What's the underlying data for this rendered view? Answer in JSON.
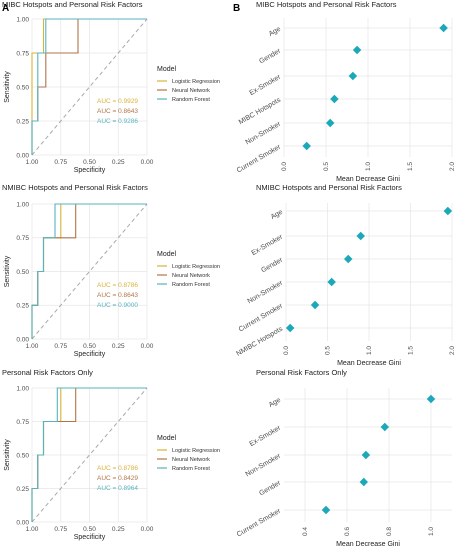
{
  "panel_letters": {
    "a": "A",
    "b": "B"
  },
  "colors": {
    "logistic": "#d8b23a",
    "neural": "#b07548",
    "forest": "#56b4be",
    "diamond": "#1ba8b8",
    "grid": "#e6e6e6",
    "diagonal": "#a9a9a9",
    "axis_text": "#4d4d4d"
  },
  "chart_data": [
    {
      "id": "roc1",
      "type": "line",
      "title": "MIBC Hotspots and Personal Risk Factors",
      "xlabel": "Specificity",
      "ylabel": "Sensitivity",
      "xlim": [
        1.0,
        0.0
      ],
      "ylim": [
        0.0,
        1.0
      ],
      "x_ticks": [
        "1.00",
        "0.75",
        "0.50",
        "0.25",
        "0.00"
      ],
      "y_ticks": [
        "0.00",
        "0.25",
        "0.50",
        "0.75",
        "1.00"
      ],
      "grid": true,
      "legend": {
        "title": "Model",
        "position": "right",
        "entries": [
          "Logistic Regression",
          "Neural Network",
          "Random Forest"
        ]
      },
      "annotations": [
        "AUC = 0.9929",
        "AUC = 0.8643",
        "AUC = 0.9286"
      ],
      "series": [
        {
          "name": "Logistic Regression",
          "x": [
            1.0,
            1.0,
            0.9,
            0.9,
            0.8,
            0.8,
            0.7,
            0.7,
            0.0
          ],
          "y": [
            0.0,
            0.75,
            0.75,
            1.0,
            1.0,
            1.0,
            1.0,
            1.0,
            1.0
          ]
        },
        {
          "name": "Neural Network",
          "x": [
            1.0,
            1.0,
            0.95,
            0.95,
            0.88,
            0.88,
            0.75,
            0.75,
            0.6,
            0.6,
            0.0
          ],
          "y": [
            0.0,
            0.25,
            0.25,
            0.5,
            0.5,
            0.75,
            0.75,
            0.75,
            0.75,
            1.0,
            1.0
          ]
        },
        {
          "name": "Random Forest",
          "x": [
            1.0,
            1.0,
            0.95,
            0.95,
            0.88,
            0.88,
            0.8,
            0.8,
            0.0
          ],
          "y": [
            0.0,
            0.25,
            0.25,
            0.75,
            0.75,
            1.0,
            1.0,
            1.0,
            1.0
          ]
        }
      ]
    },
    {
      "id": "roc2",
      "type": "line",
      "title": "NMIBC Hotspots and Personal Risk Factors",
      "xlabel": "Specificity",
      "ylabel": "Sensitivity",
      "xlim": [
        1.0,
        0.0
      ],
      "ylim": [
        0.0,
        1.0
      ],
      "x_ticks": [
        "1.00",
        "0.75",
        "0.50",
        "0.25",
        "0.00"
      ],
      "y_ticks": [
        "0.00",
        "0.25",
        "0.50",
        "0.75",
        "1.00"
      ],
      "grid": true,
      "legend": {
        "title": "Model",
        "position": "right",
        "entries": [
          "Logistic Regression",
          "Neural Network",
          "Random Forest"
        ]
      },
      "annotations": [
        "AUC = 0.8786",
        "AUC = 0.8643",
        "AUC = 0.9000"
      ],
      "series": [
        {
          "name": "Logistic Regression",
          "x": [
            1.0,
            1.0,
            0.95,
            0.95,
            0.9,
            0.9,
            0.75,
            0.75,
            0.0
          ],
          "y": [
            0.0,
            0.25,
            0.25,
            0.5,
            0.5,
            0.75,
            0.75,
            1.0,
            1.0
          ]
        },
        {
          "name": "Neural Network",
          "x": [
            1.0,
            1.0,
            0.95,
            0.95,
            0.9,
            0.9,
            0.62,
            0.62,
            0.0
          ],
          "y": [
            0.0,
            0.25,
            0.25,
            0.5,
            0.5,
            0.75,
            0.75,
            1.0,
            1.0
          ]
        },
        {
          "name": "Random Forest",
          "x": [
            1.0,
            1.0,
            0.95,
            0.95,
            0.9,
            0.9,
            0.8,
            0.8,
            0.0
          ],
          "y": [
            0.0,
            0.25,
            0.25,
            0.5,
            0.5,
            0.75,
            0.75,
            1.0,
            1.0
          ]
        }
      ]
    },
    {
      "id": "roc3",
      "type": "line",
      "title": "Personal Risk Factors Only",
      "xlabel": "Specificity",
      "ylabel": "Sensitivity",
      "xlim": [
        1.0,
        0.0
      ],
      "ylim": [
        0.0,
        1.0
      ],
      "x_ticks": [
        "1.00",
        "0.75",
        "0.50",
        "0.25",
        "0.00"
      ],
      "y_ticks": [
        "0.00",
        "0.25",
        "0.50",
        "0.75",
        "1.00"
      ],
      "grid": true,
      "legend": {
        "title": "Model",
        "position": "right",
        "entries": [
          "Logistic Regression",
          "Neural Network",
          "Random Forest"
        ]
      },
      "annotations": [
        "AUC = 0.8786",
        "AUC = 0.8429",
        "AUC = 0.8964"
      ],
      "series": [
        {
          "name": "Logistic Regression",
          "x": [
            1.0,
            1.0,
            0.95,
            0.95,
            0.9,
            0.9,
            0.82,
            0.82,
            0.75,
            0.75,
            0.0
          ],
          "y": [
            0.0,
            0.25,
            0.25,
            0.5,
            0.5,
            0.75,
            0.75,
            0.75,
            0.75,
            1.0,
            1.0
          ]
        },
        {
          "name": "Neural Network",
          "x": [
            1.0,
            1.0,
            0.95,
            0.95,
            0.9,
            0.9,
            0.62,
            0.62,
            0.0
          ],
          "y": [
            0.0,
            0.25,
            0.25,
            0.5,
            0.5,
            0.75,
            0.75,
            1.0,
            1.0
          ]
        },
        {
          "name": "Random Forest",
          "x": [
            1.0,
            1.0,
            0.95,
            0.95,
            0.9,
            0.9,
            0.78,
            0.78,
            0.0
          ],
          "y": [
            0.0,
            0.25,
            0.25,
            0.5,
            0.5,
            0.75,
            0.75,
            1.0,
            1.0
          ]
        }
      ]
    },
    {
      "id": "imp1",
      "type": "scatter",
      "title": "MIBC Hotspots and Personal Risk Factors",
      "xlabel": "Mean Decrease Gini",
      "ylabel": "",
      "xlim": [
        0.0,
        2.0
      ],
      "x_ticks": [
        "0.0",
        "0.5",
        "1.0",
        "1.5",
        "2.0"
      ],
      "grid": true,
      "categories": [
        "Current Smoker",
        "Non-Smoker",
        "MIBC Hotspots",
        "Ex-Smoker",
        "Gender",
        "Age"
      ],
      "values": [
        0.27,
        0.55,
        0.6,
        0.82,
        0.87,
        1.9
      ]
    },
    {
      "id": "imp2",
      "type": "scatter",
      "title": "NMIBC Hotspots and Personal Risk Factors",
      "xlabel": "Mean Decrease Gini",
      "ylabel": "",
      "xlim": [
        0.0,
        2.0
      ],
      "x_ticks": [
        "0.0",
        "0.5",
        "1.0",
        "1.5",
        "2.0"
      ],
      "grid": true,
      "categories": [
        "NMIBC Hotspots",
        "Current Smoker",
        "Non-Smoker",
        "Gender",
        "Ex-Smoker",
        "Age"
      ],
      "values": [
        0.05,
        0.35,
        0.55,
        0.75,
        0.9,
        1.95
      ]
    },
    {
      "id": "imp3",
      "type": "scatter",
      "title": "Personal Risk Factors Only",
      "xlabel": "Mean Decrease Gini",
      "ylabel": "",
      "xlim": [
        0.3,
        1.1
      ],
      "x_ticks": [
        "0.4",
        "0.6",
        "0.8",
        "1.0"
      ],
      "x_tick_values": [
        0.4,
        0.6,
        0.8,
        1.0
      ],
      "grid": true,
      "categories": [
        "Current Smoker",
        "Gender",
        "Non-Smoker",
        "Ex-Smoker",
        "Age"
      ],
      "values": [
        0.5,
        0.68,
        0.69,
        0.78,
        1.0
      ]
    }
  ]
}
